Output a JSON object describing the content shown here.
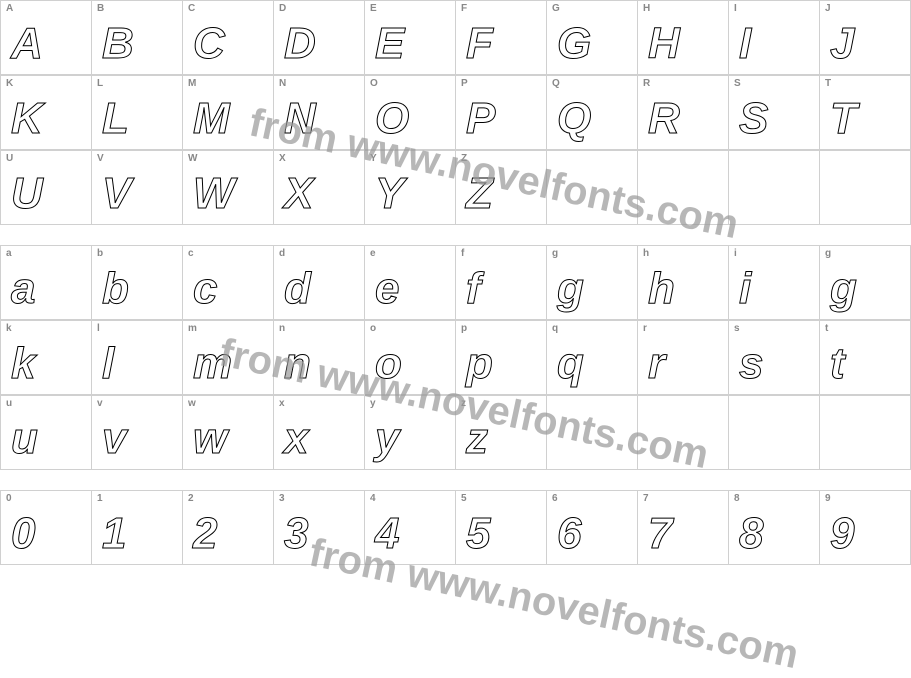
{
  "watermark": "from www.novelfonts.com",
  "rows": [
    {
      "labels": [
        "A",
        "B",
        "C",
        "D",
        "E",
        "F",
        "G",
        "H",
        "I",
        "J"
      ],
      "glyphs": [
        "A",
        "B",
        "C",
        "D",
        "E",
        "F",
        "G",
        "H",
        "I",
        "J"
      ]
    },
    {
      "labels": [
        "K",
        "L",
        "M",
        "N",
        "O",
        "P",
        "Q",
        "R",
        "S",
        "T"
      ],
      "glyphs": [
        "K",
        "L",
        "M",
        "N",
        "O",
        "P",
        "Q",
        "R",
        "S",
        "T"
      ]
    },
    {
      "labels": [
        "U",
        "V",
        "W",
        "X",
        "Y",
        "Z",
        "",
        "",
        "",
        ""
      ],
      "glyphs": [
        "U",
        "V",
        "W",
        "X",
        "Y",
        "Z",
        "",
        "",
        "",
        ""
      ]
    },
    {
      "labels": [
        "a",
        "b",
        "c",
        "d",
        "e",
        "f",
        "g",
        "h",
        "i",
        "g"
      ],
      "glyphs": [
        "a",
        "b",
        "c",
        "d",
        "e",
        "f",
        "g",
        "h",
        "i",
        "g"
      ]
    },
    {
      "labels": [
        "k",
        "l",
        "m",
        "n",
        "o",
        "p",
        "q",
        "r",
        "s",
        "t"
      ],
      "glyphs": [
        "k",
        "l",
        "m",
        "n",
        "o",
        "p",
        "q",
        "r",
        "s",
        "t"
      ]
    },
    {
      "labels": [
        "u",
        "v",
        "w",
        "x",
        "y",
        "z",
        "",
        "",
        "",
        ""
      ],
      "glyphs": [
        "u",
        "v",
        "w",
        "x",
        "y",
        "z",
        "",
        "",
        "",
        ""
      ]
    },
    {
      "labels": [
        "0",
        "1",
        "2",
        "3",
        "4",
        "5",
        "6",
        "7",
        "8",
        "9"
      ],
      "glyphs": [
        "0",
        "1",
        "2",
        "3",
        "4",
        "5",
        "6",
        "7",
        "8",
        "9"
      ]
    }
  ],
  "spacerAfter": [
    2,
    5
  ],
  "colors": {
    "grid": "#d0d0d0",
    "label": "#888888",
    "watermark": "#999999",
    "glyphStroke": "#000000",
    "background": "#ffffff"
  },
  "typography": {
    "labelFontSize": 10,
    "glyphFontSize": 44,
    "watermarkFontSize": 40,
    "glyphStyle": "italic bold outline"
  }
}
